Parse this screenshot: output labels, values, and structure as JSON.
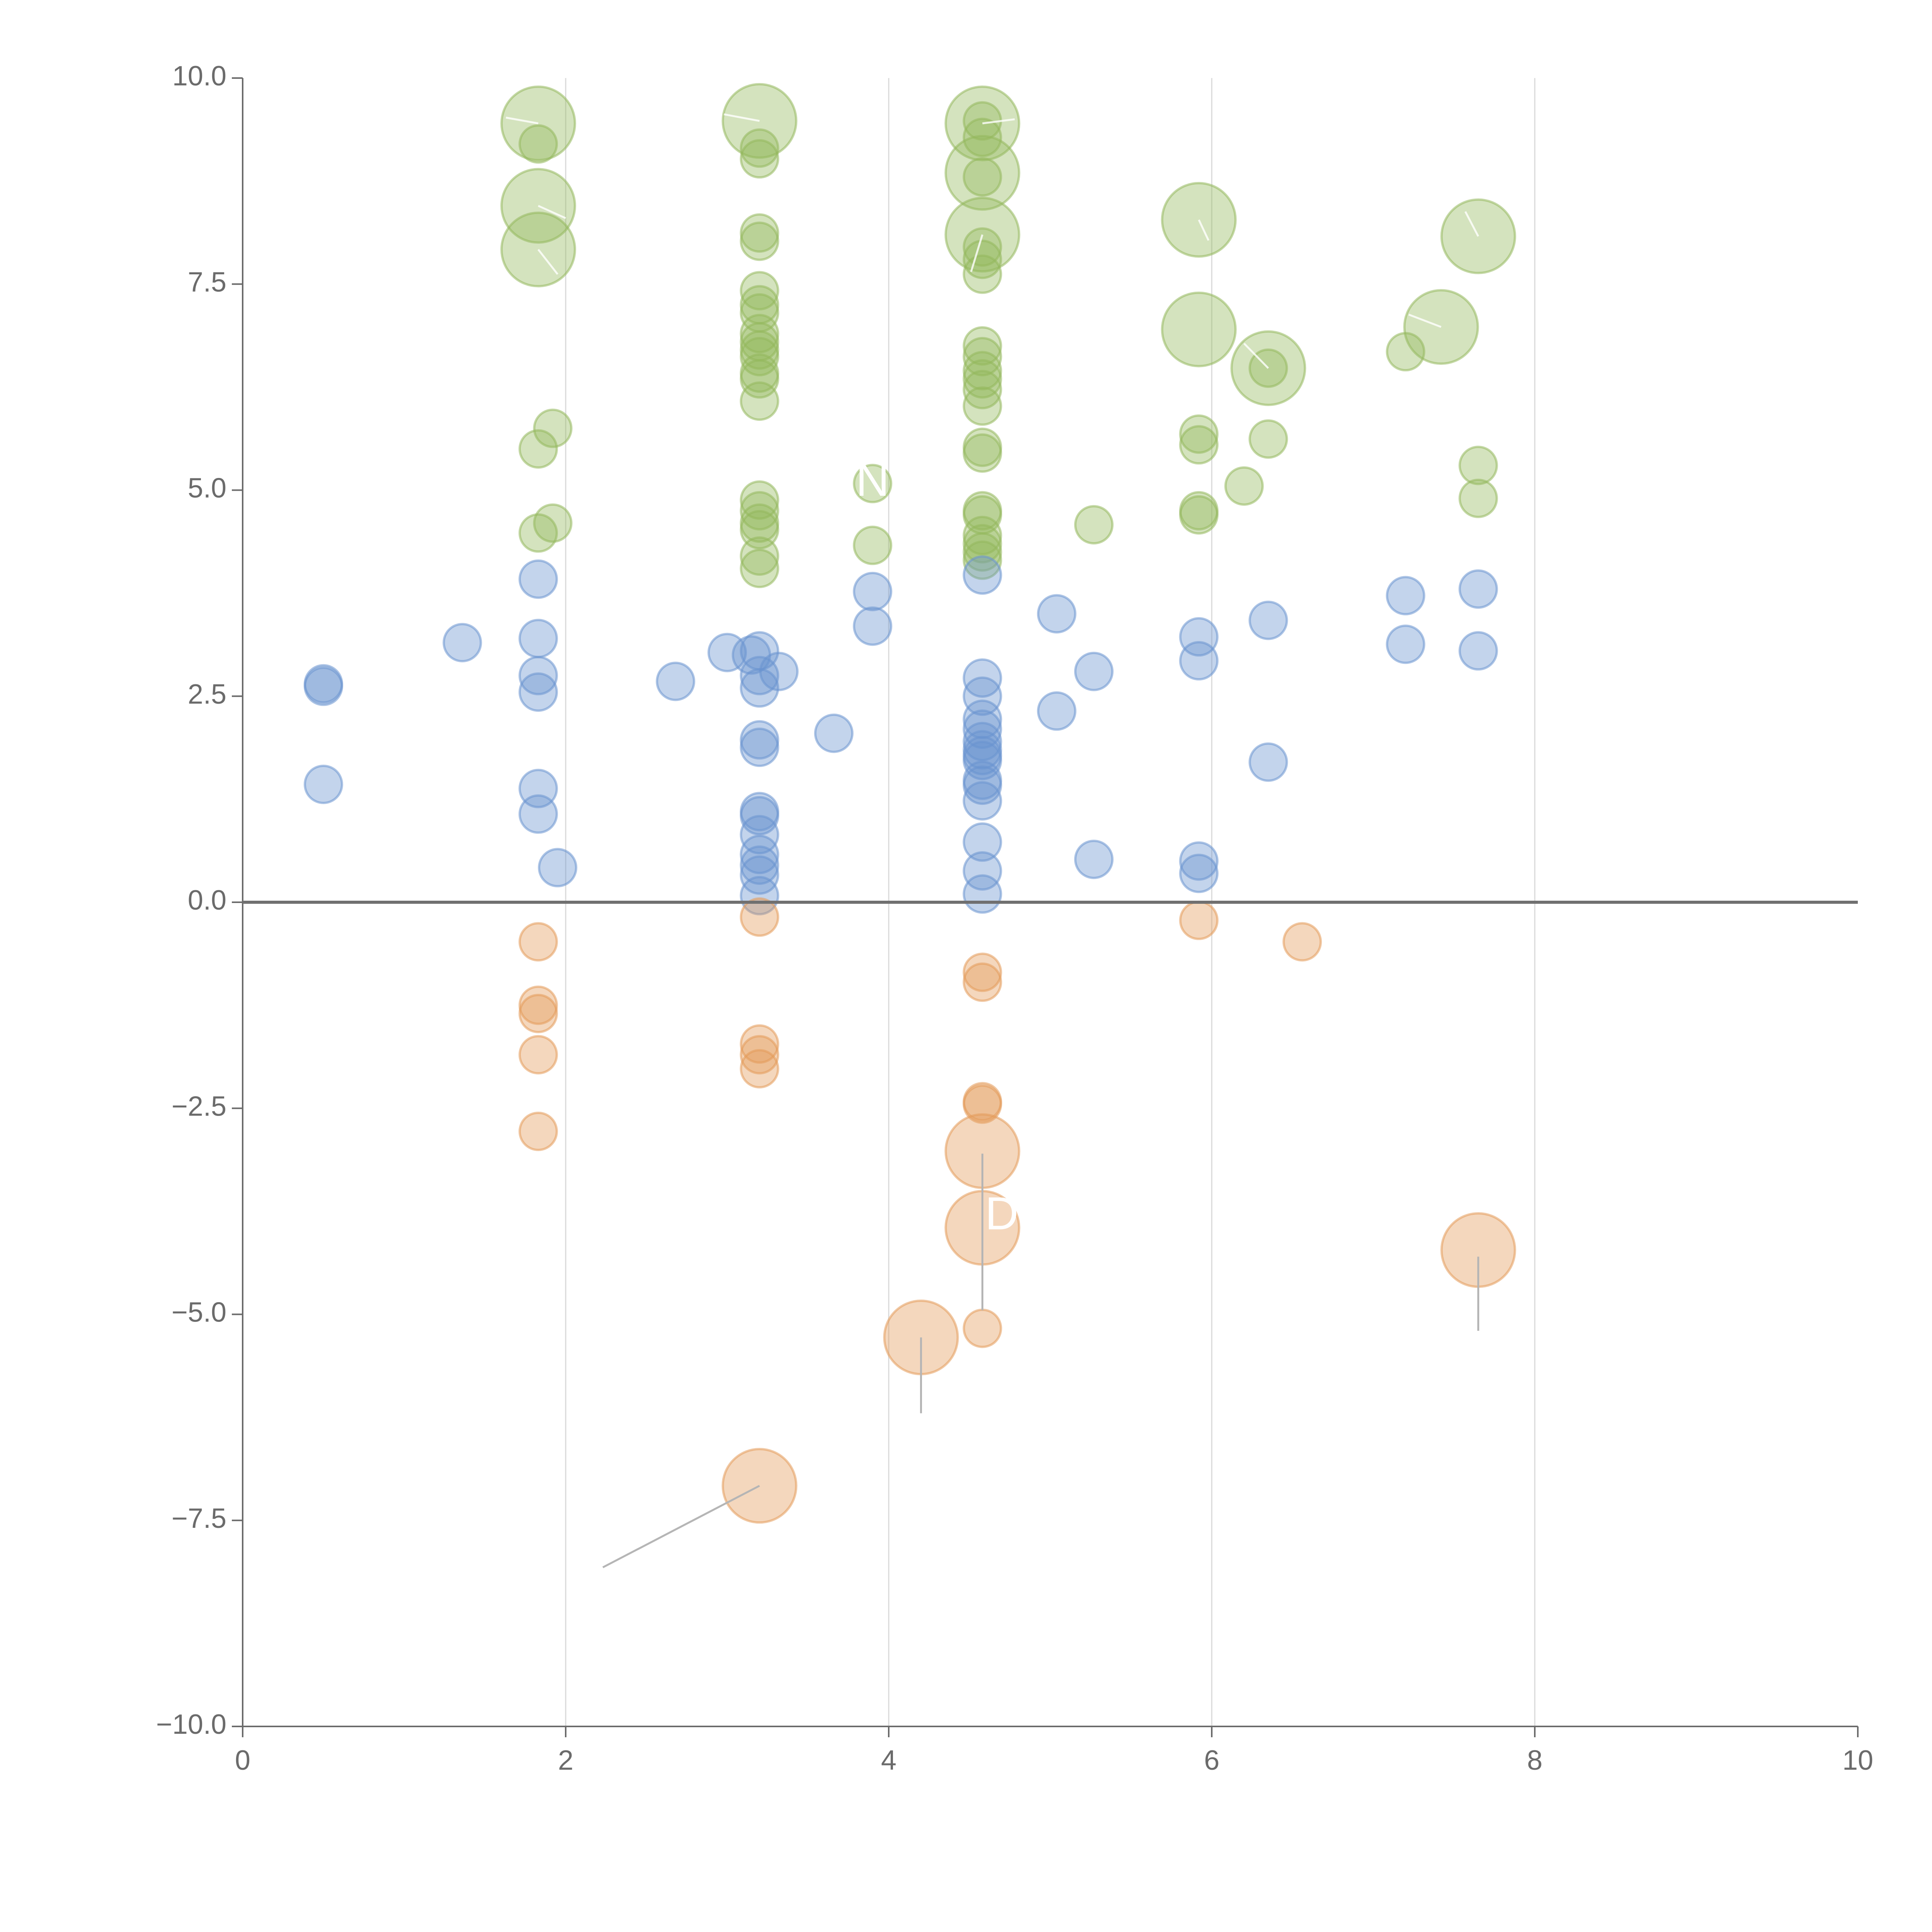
{
  "chart_data": {
    "type": "scatter",
    "title": "",
    "xlabel": "",
    "ylabel": "",
    "xlim": [
      0,
      10
    ],
    "ylim": [
      -10,
      10
    ],
    "x_ticks": [
      "0",
      "2",
      "4",
      "6",
      "8",
      "10"
    ],
    "y_ticks": [
      "10.0",
      "7.5",
      "5.0",
      "2.5",
      "0.0",
      "−2.5",
      "−5.0",
      "−7.5",
      "−10.0"
    ],
    "grid": "vertical",
    "zero_line": true,
    "bubble_opacity": 0.4,
    "series": [
      {
        "color": "#93b85d",
        "points": [
          {
            "x": 1.83,
            "y": 9.45,
            "size": "large"
          },
          {
            "x": 1.83,
            "y": 9.2,
            "size": "small"
          },
          {
            "x": 1.83,
            "y": 8.45,
            "size": "large"
          },
          {
            "x": 1.83,
            "y": 7.92,
            "size": "large"
          },
          {
            "x": 1.92,
            "y": 5.75,
            "size": "small"
          },
          {
            "x": 1.83,
            "y": 5.5,
            "size": "small"
          },
          {
            "x": 1.92,
            "y": 4.6,
            "size": "small"
          },
          {
            "x": 1.83,
            "y": 4.48,
            "size": "small"
          },
          {
            "x": 3.2,
            "y": 9.48,
            "size": "large"
          },
          {
            "x": 3.2,
            "y": 9.15,
            "size": "small"
          },
          {
            "x": 3.2,
            "y": 9.02,
            "size": "small"
          },
          {
            "x": 3.2,
            "y": 8.12,
            "size": "small"
          },
          {
            "x": 3.2,
            "y": 8.02,
            "size": "small"
          },
          {
            "x": 3.2,
            "y": 7.42,
            "size": "small"
          },
          {
            "x": 3.2,
            "y": 7.25,
            "size": "small"
          },
          {
            "x": 3.2,
            "y": 7.15,
            "size": "small"
          },
          {
            "x": 3.2,
            "y": 6.9,
            "size": "small"
          },
          {
            "x": 3.2,
            "y": 6.8,
            "size": "small"
          },
          {
            "x": 3.2,
            "y": 6.7,
            "size": "small"
          },
          {
            "x": 3.2,
            "y": 6.62,
            "size": "small"
          },
          {
            "x": 3.2,
            "y": 6.42,
            "size": "small"
          },
          {
            "x": 3.2,
            "y": 6.35,
            "size": "small"
          },
          {
            "x": 3.2,
            "y": 6.08,
            "size": "small"
          },
          {
            "x": 3.2,
            "y": 4.88,
            "size": "small"
          },
          {
            "x": 3.2,
            "y": 4.75,
            "size": "small"
          },
          {
            "x": 3.2,
            "y": 4.6,
            "size": "small"
          },
          {
            "x": 3.2,
            "y": 4.52,
            "size": "small"
          },
          {
            "x": 3.2,
            "y": 4.2,
            "size": "small"
          },
          {
            "x": 3.2,
            "y": 4.05,
            "size": "small"
          },
          {
            "x": 3.9,
            "y": 5.08,
            "size": "small"
          },
          {
            "x": 3.9,
            "y": 4.33,
            "size": "small"
          },
          {
            "x": 4.58,
            "y": 9.45,
            "size": "large"
          },
          {
            "x": 4.58,
            "y": 9.48,
            "size": "small"
          },
          {
            "x": 4.58,
            "y": 9.28,
            "size": "small"
          },
          {
            "x": 4.58,
            "y": 8.85,
            "size": "large"
          },
          {
            "x": 4.58,
            "y": 8.8,
            "size": "small"
          },
          {
            "x": 4.58,
            "y": 8.1,
            "size": "large"
          },
          {
            "x": 4.58,
            "y": 7.95,
            "size": "small"
          },
          {
            "x": 4.58,
            "y": 7.8,
            "size": "small"
          },
          {
            "x": 4.58,
            "y": 7.62,
            "size": "small"
          },
          {
            "x": 4.58,
            "y": 6.75,
            "size": "small"
          },
          {
            "x": 4.58,
            "y": 6.62,
            "size": "small"
          },
          {
            "x": 4.58,
            "y": 6.45,
            "size": "small"
          },
          {
            "x": 4.58,
            "y": 6.35,
            "size": "small"
          },
          {
            "x": 4.58,
            "y": 6.22,
            "size": "small"
          },
          {
            "x": 4.58,
            "y": 6.02,
            "size": "small"
          },
          {
            "x": 4.58,
            "y": 5.52,
            "size": "small"
          },
          {
            "x": 4.58,
            "y": 5.45,
            "size": "small"
          },
          {
            "x": 4.58,
            "y": 4.75,
            "size": "small"
          },
          {
            "x": 4.58,
            "y": 4.7,
            "size": "small"
          },
          {
            "x": 4.58,
            "y": 4.45,
            "size": "small"
          },
          {
            "x": 4.58,
            "y": 4.35,
            "size": "small"
          },
          {
            "x": 4.58,
            "y": 4.25,
            "size": "small"
          },
          {
            "x": 4.58,
            "y": 4.15,
            "size": "small"
          },
          {
            "x": 5.27,
            "y": 4.58,
            "size": "small"
          },
          {
            "x": 5.92,
            "y": 8.28,
            "size": "large"
          },
          {
            "x": 5.92,
            "y": 6.95,
            "size": "large"
          },
          {
            "x": 5.92,
            "y": 5.68,
            "size": "small"
          },
          {
            "x": 5.92,
            "y": 5.55,
            "size": "small"
          },
          {
            "x": 5.92,
            "y": 4.75,
            "size": "small"
          },
          {
            "x": 5.92,
            "y": 4.7,
            "size": "small"
          },
          {
            "x": 6.35,
            "y": 6.48,
            "size": "large"
          },
          {
            "x": 6.35,
            "y": 6.48,
            "size": "small"
          },
          {
            "x": 6.35,
            "y": 5.62,
            "size": "small"
          },
          {
            "x": 6.2,
            "y": 5.05,
            "size": "small"
          },
          {
            "x": 7.42,
            "y": 6.98,
            "size": "large"
          },
          {
            "x": 7.2,
            "y": 6.68,
            "size": "small"
          },
          {
            "x": 7.65,
            "y": 8.08,
            "size": "large"
          },
          {
            "x": 7.65,
            "y": 5.3,
            "size": "small"
          },
          {
            "x": 7.65,
            "y": 4.9,
            "size": "small"
          }
        ]
      },
      {
        "color": "#6a93cf",
        "points": [
          {
            "x": 0.5,
            "y": 2.65,
            "size": "small"
          },
          {
            "x": 0.5,
            "y": 2.62,
            "size": "small"
          },
          {
            "x": 0.5,
            "y": 1.43,
            "size": "small"
          },
          {
            "x": 1.36,
            "y": 3.15,
            "size": "small"
          },
          {
            "x": 1.83,
            "y": 3.92,
            "size": "small"
          },
          {
            "x": 1.83,
            "y": 3.2,
            "size": "small"
          },
          {
            "x": 1.83,
            "y": 2.75,
            "size": "small"
          },
          {
            "x": 1.83,
            "y": 2.55,
            "size": "small"
          },
          {
            "x": 1.83,
            "y": 1.38,
            "size": "small"
          },
          {
            "x": 1.83,
            "y": 1.07,
            "size": "small"
          },
          {
            "x": 1.95,
            "y": 0.42,
            "size": "small"
          },
          {
            "x": 2.68,
            "y": 2.68,
            "size": "small"
          },
          {
            "x": 3.0,
            "y": 3.03,
            "size": "small"
          },
          {
            "x": 3.15,
            "y": 3.0,
            "size": "small"
          },
          {
            "x": 3.2,
            "y": 3.05,
            "size": "small"
          },
          {
            "x": 3.2,
            "y": 2.75,
            "size": "small"
          },
          {
            "x": 3.32,
            "y": 2.8,
            "size": "small"
          },
          {
            "x": 3.2,
            "y": 2.6,
            "size": "small"
          },
          {
            "x": 3.2,
            "y": 1.97,
            "size": "small"
          },
          {
            "x": 3.2,
            "y": 1.88,
            "size": "small"
          },
          {
            "x": 3.2,
            "y": 1.1,
            "size": "small"
          },
          {
            "x": 3.2,
            "y": 1.05,
            "size": "small"
          },
          {
            "x": 3.2,
            "y": 0.82,
            "size": "small"
          },
          {
            "x": 3.2,
            "y": 0.58,
            "size": "small"
          },
          {
            "x": 3.2,
            "y": 0.45,
            "size": "small"
          },
          {
            "x": 3.2,
            "y": 0.33,
            "size": "small"
          },
          {
            "x": 3.2,
            "y": 0.08,
            "size": "small"
          },
          {
            "x": 3.66,
            "y": 2.05,
            "size": "small"
          },
          {
            "x": 3.9,
            "y": 3.77,
            "size": "small"
          },
          {
            "x": 3.9,
            "y": 3.35,
            "size": "small"
          },
          {
            "x": 4.58,
            "y": 3.97,
            "size": "small"
          },
          {
            "x": 4.58,
            "y": 2.72,
            "size": "small"
          },
          {
            "x": 4.58,
            "y": 2.5,
            "size": "small"
          },
          {
            "x": 4.58,
            "y": 2.22,
            "size": "small"
          },
          {
            "x": 4.58,
            "y": 2.1,
            "size": "small"
          },
          {
            "x": 4.58,
            "y": 1.95,
            "size": "small"
          },
          {
            "x": 4.58,
            "y": 1.85,
            "size": "small"
          },
          {
            "x": 4.58,
            "y": 1.78,
            "size": "small"
          },
          {
            "x": 4.58,
            "y": 1.72,
            "size": "small"
          },
          {
            "x": 4.58,
            "y": 1.48,
            "size": "small"
          },
          {
            "x": 4.58,
            "y": 1.42,
            "size": "small"
          },
          {
            "x": 4.58,
            "y": 1.23,
            "size": "small"
          },
          {
            "x": 4.58,
            "y": 0.73,
            "size": "small"
          },
          {
            "x": 4.58,
            "y": 0.38,
            "size": "small"
          },
          {
            "x": 4.58,
            "y": 0.1,
            "size": "small"
          },
          {
            "x": 5.04,
            "y": 3.5,
            "size": "small"
          },
          {
            "x": 5.04,
            "y": 2.32,
            "size": "small"
          },
          {
            "x": 5.27,
            "y": 2.8,
            "size": "small"
          },
          {
            "x": 5.27,
            "y": 0.52,
            "size": "small"
          },
          {
            "x": 5.92,
            "y": 3.22,
            "size": "small"
          },
          {
            "x": 5.92,
            "y": 2.93,
            "size": "small"
          },
          {
            "x": 5.92,
            "y": 0.5,
            "size": "small"
          },
          {
            "x": 5.92,
            "y": 0.35,
            "size": "small"
          },
          {
            "x": 6.35,
            "y": 3.42,
            "size": "small"
          },
          {
            "x": 6.35,
            "y": 1.7,
            "size": "small"
          },
          {
            "x": 7.2,
            "y": 3.72,
            "size": "small"
          },
          {
            "x": 7.2,
            "y": 3.13,
            "size": "small"
          },
          {
            "x": 7.65,
            "y": 3.8,
            "size": "small"
          },
          {
            "x": 7.65,
            "y": 3.05,
            "size": "small"
          }
        ]
      },
      {
        "color": "#e39a5a",
        "points": [
          {
            "x": 1.83,
            "y": -0.48,
            "size": "small"
          },
          {
            "x": 1.83,
            "y": -1.25,
            "size": "small"
          },
          {
            "x": 1.83,
            "y": -1.35,
            "size": "small"
          },
          {
            "x": 1.83,
            "y": -1.85,
            "size": "small"
          },
          {
            "x": 1.83,
            "y": -2.78,
            "size": "small"
          },
          {
            "x": 3.2,
            "y": -0.18,
            "size": "small"
          },
          {
            "x": 3.2,
            "y": -1.72,
            "size": "small"
          },
          {
            "x": 3.2,
            "y": -1.85,
            "size": "small"
          },
          {
            "x": 3.2,
            "y": -2.02,
            "size": "small"
          },
          {
            "x": 3.2,
            "y": -7.08,
            "size": "large"
          },
          {
            "x": 4.2,
            "y": -5.28,
            "size": "large"
          },
          {
            "x": 4.58,
            "y": -0.85,
            "size": "small"
          },
          {
            "x": 4.58,
            "y": -0.97,
            "size": "small"
          },
          {
            "x": 4.58,
            "y": -2.42,
            "size": "small"
          },
          {
            "x": 4.58,
            "y": -2.45,
            "size": "small"
          },
          {
            "x": 4.58,
            "y": -3.02,
            "size": "large"
          },
          {
            "x": 4.58,
            "y": -3.95,
            "size": "large"
          },
          {
            "x": 4.58,
            "y": -5.17,
            "size": "small"
          },
          {
            "x": 5.92,
            "y": -0.22,
            "size": "small"
          },
          {
            "x": 6.56,
            "y": -0.48,
            "size": "small"
          },
          {
            "x": 7.65,
            "y": -4.22,
            "size": "large"
          }
        ]
      }
    ],
    "annotations": [
      {
        "text": "N",
        "x": 3.9,
        "y": 5.08
      },
      {
        "text": "D",
        "x": 4.7,
        "y": -3.82
      }
    ]
  }
}
